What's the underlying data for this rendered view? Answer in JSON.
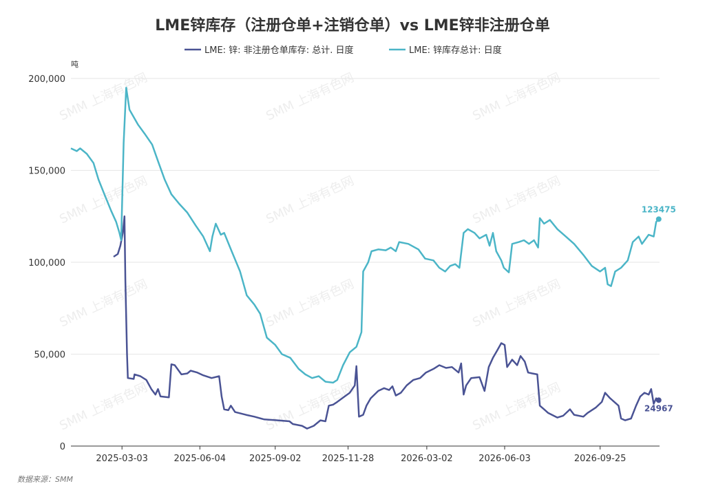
{
  "chart_data": {
    "type": "line",
    "title": "LME锌库存（注册仓单+注销仓单）vs LME锌非注册仓单",
    "unit": "吨",
    "source": "数据来源：SMM",
    "watermark": "SMM 上海有色网",
    "ylim": [
      0,
      200000
    ],
    "yticks": [
      "0",
      "50,000",
      "100,000",
      "150,000",
      "200,000"
    ],
    "xticks": [
      "2025-03-03",
      "2025-06-04",
      "2025-09-02",
      "2025-11-28",
      "2026-03-02",
      "2026-06-03",
      "2026-09-25"
    ],
    "legend_position": "top-center",
    "grid": true,
    "colors": {
      "series1": "#4a5394",
      "series2": "#4bb5c7"
    },
    "series": [
      {
        "name": "LME: 锌: 非注册仓单库存: 总计. 日度",
        "color": "#4a5394",
        "end_label": "24967",
        "points": [
          [
            "2025-02-21",
            103000
          ],
          [
            "2025-02-26",
            104500
          ],
          [
            "2025-03-01",
            109000
          ],
          [
            "2025-03-04",
            116000
          ],
          [
            "2025-03-06",
            125000
          ],
          [
            "2025-03-07",
            90000
          ],
          [
            "2025-03-09",
            50000
          ],
          [
            "2025-03-10",
            37000
          ],
          [
            "2025-03-17",
            36500
          ],
          [
            "2025-03-18",
            39000
          ],
          [
            "2025-03-25",
            38000
          ],
          [
            "2025-04-01",
            36000
          ],
          [
            "2025-04-07",
            31000
          ],
          [
            "2025-04-12",
            28000
          ],
          [
            "2025-04-15",
            31000
          ],
          [
            "2025-04-18",
            27000
          ],
          [
            "2025-04-28",
            26500
          ],
          [
            "2025-05-01",
            44500
          ],
          [
            "2025-05-05",
            44000
          ],
          [
            "2025-05-13",
            39000
          ],
          [
            "2025-05-20",
            39500
          ],
          [
            "2025-05-24",
            41000
          ],
          [
            "2025-06-01",
            40000
          ],
          [
            "2025-06-08",
            38500
          ],
          [
            "2025-06-18",
            37000
          ],
          [
            "2025-06-27",
            38000
          ],
          [
            "2025-06-30",
            27000
          ],
          [
            "2025-07-03",
            20000
          ],
          [
            "2025-07-08",
            19500
          ],
          [
            "2025-07-11",
            22000
          ],
          [
            "2025-07-16",
            18500
          ],
          [
            "2025-07-29",
            17000
          ],
          [
            "2025-08-08",
            16000
          ],
          [
            "2025-08-20",
            14500
          ],
          [
            "2025-09-05",
            14000
          ],
          [
            "2025-09-19",
            13500
          ],
          [
            "2025-09-23",
            12000
          ],
          [
            "2025-10-04",
            11000
          ],
          [
            "2025-10-10",
            9500
          ],
          [
            "2025-10-18",
            11000
          ],
          [
            "2025-10-26",
            14000
          ],
          [
            "2025-11-01",
            13500
          ],
          [
            "2025-11-05",
            22000
          ],
          [
            "2025-11-10",
            22500
          ],
          [
            "2025-11-15",
            24000
          ],
          [
            "2025-11-24",
            27000
          ],
          [
            "2025-11-30",
            29000
          ],
          [
            "2025-12-06",
            33000
          ],
          [
            "2025-12-08",
            43500
          ],
          [
            "2025-12-11",
            16000
          ],
          [
            "2025-12-16",
            17000
          ],
          [
            "2025-12-20",
            22000
          ],
          [
            "2025-12-25",
            26000
          ],
          [
            "2026-01-03",
            30000
          ],
          [
            "2026-01-10",
            31500
          ],
          [
            "2026-01-16",
            30500
          ],
          [
            "2026-01-20",
            32500
          ],
          [
            "2026-01-24",
            27500
          ],
          [
            "2026-01-30",
            29000
          ],
          [
            "2026-02-06",
            33000
          ],
          [
            "2026-02-14",
            36000
          ],
          [
            "2026-02-22",
            37000
          ],
          [
            "2026-03-01",
            40000
          ],
          [
            "2026-03-10",
            42000
          ],
          [
            "2026-03-17",
            44000
          ],
          [
            "2026-03-25",
            42500
          ],
          [
            "2026-04-01",
            43000
          ],
          [
            "2026-04-09",
            40000
          ],
          [
            "2026-04-12",
            45000
          ],
          [
            "2026-04-15",
            28000
          ],
          [
            "2026-04-18",
            33000
          ],
          [
            "2026-04-24",
            37000
          ],
          [
            "2026-05-04",
            37500
          ],
          [
            "2026-05-10",
            30000
          ],
          [
            "2026-05-15",
            43000
          ],
          [
            "2026-05-20",
            48000
          ],
          [
            "2026-05-25",
            52000
          ],
          [
            "2026-05-30",
            56000
          ],
          [
            "2026-06-03",
            55000
          ],
          [
            "2026-06-06",
            43000
          ],
          [
            "2026-06-12",
            47000
          ],
          [
            "2026-06-18",
            44000
          ],
          [
            "2026-06-22",
            49000
          ],
          [
            "2026-06-27",
            46000
          ],
          [
            "2026-07-01",
            40000
          ],
          [
            "2026-07-06",
            39500
          ],
          [
            "2026-07-12",
            39000
          ],
          [
            "2026-07-15",
            22000
          ],
          [
            "2026-07-20",
            20000
          ],
          [
            "2026-07-25",
            18000
          ],
          [
            "2026-08-05",
            15500
          ],
          [
            "2026-08-12",
            16500
          ],
          [
            "2026-08-20",
            20000
          ],
          [
            "2026-08-25",
            17000
          ],
          [
            "2026-09-05",
            16000
          ],
          [
            "2026-09-10",
            18000
          ],
          [
            "2026-09-20",
            21000
          ],
          [
            "2026-09-27",
            24000
          ],
          [
            "2026-10-01",
            29000
          ],
          [
            "2026-10-07",
            26000
          ],
          [
            "2026-10-12",
            24000
          ],
          [
            "2026-10-17",
            22000
          ],
          [
            "2026-10-20",
            15000
          ],
          [
            "2026-10-25",
            14000
          ],
          [
            "2026-11-01",
            15000
          ],
          [
            "2026-11-07",
            22000
          ],
          [
            "2026-11-12",
            27000
          ],
          [
            "2026-11-17",
            29000
          ],
          [
            "2026-11-22",
            28000
          ],
          [
            "2026-11-25",
            31000
          ],
          [
            "2026-11-28",
            23000
          ],
          [
            "2026-12-01",
            26000
          ],
          [
            "2026-12-04",
            24967
          ]
        ]
      },
      {
        "name": "LME: 锌库存总计: 日度",
        "color": "#4bb5c7",
        "end_label": "123475",
        "points": [
          [
            "2025-01-01",
            162000
          ],
          [
            "2025-01-08",
            160500
          ],
          [
            "2025-01-12",
            162000
          ],
          [
            "2025-01-20",
            159000
          ],
          [
            "2025-01-28",
            154000
          ],
          [
            "2025-02-03",
            145000
          ],
          [
            "2025-02-10",
            137000
          ],
          [
            "2025-02-18",
            128000
          ],
          [
            "2025-02-24",
            122000
          ],
          [
            "2025-02-28",
            116000
          ],
          [
            "2025-03-02",
            112000
          ],
          [
            "2025-03-05",
            165000
          ],
          [
            "2025-03-08",
            195000
          ],
          [
            "2025-03-12",
            183000
          ],
          [
            "2025-03-22",
            175000
          ],
          [
            "2025-03-30",
            170000
          ],
          [
            "2025-04-08",
            164000
          ],
          [
            "2025-04-15",
            155000
          ],
          [
            "2025-04-23",
            145000
          ],
          [
            "2025-05-01",
            137000
          ],
          [
            "2025-05-10",
            132000
          ],
          [
            "2025-05-20",
            127000
          ],
          [
            "2025-05-30",
            120000
          ],
          [
            "2025-06-08",
            114000
          ],
          [
            "2025-06-16",
            106000
          ],
          [
            "2025-06-19",
            114000
          ],
          [
            "2025-06-23",
            121000
          ],
          [
            "2025-06-29",
            115000
          ],
          [
            "2025-07-03",
            116000
          ],
          [
            "2025-07-12",
            106000
          ],
          [
            "2025-07-22",
            95000
          ],
          [
            "2025-07-30",
            82000
          ],
          [
            "2025-08-08",
            77000
          ],
          [
            "2025-08-15",
            72000
          ],
          [
            "2025-08-23",
            59000
          ],
          [
            "2025-09-02",
            55000
          ],
          [
            "2025-09-10",
            50000
          ],
          [
            "2025-09-20",
            48000
          ],
          [
            "2025-09-30",
            42000
          ],
          [
            "2025-10-08",
            39000
          ],
          [
            "2025-10-16",
            37000
          ],
          [
            "2025-10-24",
            38000
          ],
          [
            "2025-11-01",
            35000
          ],
          [
            "2025-11-10",
            34500
          ],
          [
            "2025-11-15",
            36000
          ],
          [
            "2025-11-22",
            44000
          ],
          [
            "2025-11-30",
            51000
          ],
          [
            "2025-12-08",
            54000
          ],
          [
            "2025-12-14",
            62000
          ],
          [
            "2025-12-16",
            95000
          ],
          [
            "2025-12-22",
            100000
          ],
          [
            "2025-12-26",
            106000
          ],
          [
            "2026-01-03",
            107000
          ],
          [
            "2026-01-12",
            106500
          ],
          [
            "2026-01-18",
            108000
          ],
          [
            "2026-01-24",
            106000
          ],
          [
            "2026-01-28",
            111000
          ],
          [
            "2026-02-08",
            110000
          ],
          [
            "2026-02-20",
            107000
          ],
          [
            "2026-02-28",
            102000
          ],
          [
            "2026-03-10",
            101000
          ],
          [
            "2026-03-17",
            97000
          ],
          [
            "2026-03-24",
            95000
          ],
          [
            "2026-03-30",
            98000
          ],
          [
            "2026-04-05",
            99000
          ],
          [
            "2026-04-10",
            97000
          ],
          [
            "2026-04-15",
            116000
          ],
          [
            "2026-04-20",
            118000
          ],
          [
            "2026-04-28",
            116000
          ],
          [
            "2026-05-04",
            113000
          ],
          [
            "2026-05-12",
            115000
          ],
          [
            "2026-05-16",
            109000
          ],
          [
            "2026-05-20",
            116000
          ],
          [
            "2026-05-24",
            106000
          ],
          [
            "2026-05-30",
            101000
          ],
          [
            "2026-06-02",
            97000
          ],
          [
            "2026-06-08",
            94500
          ],
          [
            "2026-06-12",
            110000
          ],
          [
            "2026-06-20",
            111000
          ],
          [
            "2026-06-26",
            112000
          ],
          [
            "2026-07-02",
            110000
          ],
          [
            "2026-07-08",
            112000
          ],
          [
            "2026-07-13",
            108000
          ],
          [
            "2026-07-15",
            124000
          ],
          [
            "2026-07-20",
            121000
          ],
          [
            "2026-07-27",
            123000
          ],
          [
            "2026-08-05",
            118000
          ],
          [
            "2026-08-15",
            114000
          ],
          [
            "2026-08-25",
            110000
          ],
          [
            "2026-09-05",
            104000
          ],
          [
            "2026-09-15",
            98000
          ],
          [
            "2026-09-25",
            95000
          ],
          [
            "2026-10-01",
            97000
          ],
          [
            "2026-10-04",
            88000
          ],
          [
            "2026-10-08",
            87000
          ],
          [
            "2026-10-13",
            95000
          ],
          [
            "2026-10-20",
            97000
          ],
          [
            "2026-10-28",
            101000
          ],
          [
            "2026-11-03",
            111000
          ],
          [
            "2026-11-10",
            114000
          ],
          [
            "2026-11-14",
            110000
          ],
          [
            "2026-11-22",
            115000
          ],
          [
            "2026-11-28",
            114000
          ],
          [
            "2026-12-01",
            122000
          ],
          [
            "2026-12-04",
            123475
          ]
        ]
      }
    ]
  }
}
